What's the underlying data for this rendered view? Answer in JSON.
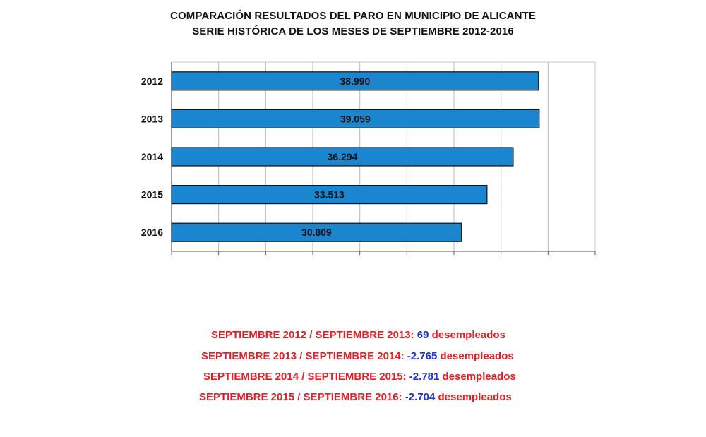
{
  "chart_data": {
    "type": "bar",
    "orientation": "horizontal",
    "title": "COMPARACIÓN RESULTADOS DEL PARO EN  MUNICIPIO DE ALICANTE",
    "subtitle": "SERIE HISTÓRICA DE LOS MESES DE SEPTIEMBRE 2012-2016",
    "categories": [
      "2012",
      "2013",
      "2014",
      "2015",
      "2016"
    ],
    "values": [
      38990,
      39059,
      36294,
      33513,
      30809
    ],
    "data_labels": [
      "38.990",
      "39.059",
      "36.294",
      "33.513",
      "30.809"
    ],
    "xlim": [
      0,
      45000
    ],
    "x_gridline_step": 5000,
    "grid": true,
    "bar_color": "#1a86d0",
    "legend": "none"
  },
  "comparisons": [
    {
      "label": "SEPTIEMBRE 2012 / SEPTIEMBRE 2013:",
      "value": "69",
      "unit": "desempleados"
    },
    {
      "label": "SEPTIEMBRE 2013 / SEPTIEMBRE 2014:",
      "value": "-2.765",
      "unit": "desempleados"
    },
    {
      "label": "SEPTIEMBRE 2014 /  SEPTIEMBRE 2015:",
      "value": "-2.781",
      "unit": "desempleados"
    },
    {
      "label": "SEPTIEMBRE 2015 / SEPTIEMBRE 2016:",
      "value": "-2.704",
      "unit": "desempleados"
    }
  ],
  "colors": {
    "label_red": "#e31e24",
    "value_blue": "#1a2fd0"
  }
}
